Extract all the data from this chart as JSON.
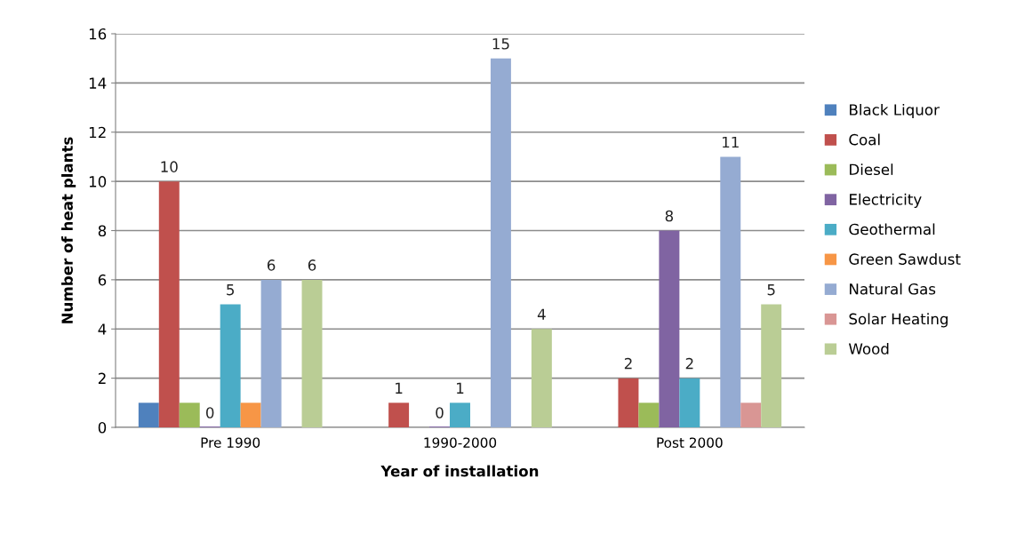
{
  "chart_data": {
    "type": "bar",
    "xlabel": "Year of installation",
    "ylabel": "Number of heat plants",
    "categories": [
      "Pre 1990",
      "1990-2000",
      "Post 2000"
    ],
    "series": [
      {
        "name": "Black Liquor",
        "color": "#4f81bd",
        "values": [
          1,
          null,
          null
        ]
      },
      {
        "name": "Coal",
        "color": "#c0504d",
        "values": [
          10,
          1,
          2
        ],
        "value_labels": [
          "10",
          "1",
          "2"
        ]
      },
      {
        "name": "Diesel",
        "color": "#9bbb59",
        "values": [
          1,
          null,
          1
        ]
      },
      {
        "name": "Electricity",
        "color": "#8064a2",
        "values": [
          0,
          0,
          8
        ],
        "value_labels": [
          "0",
          "0",
          "8"
        ]
      },
      {
        "name": "Geothermal",
        "color": "#4bacc6",
        "values": [
          5,
          1,
          2
        ],
        "value_labels": [
          "5",
          "1",
          "2"
        ]
      },
      {
        "name": "Green Sawdust",
        "color": "#f79646",
        "values": [
          1,
          null,
          null
        ]
      },
      {
        "name": "Natural Gas",
        "color": "#95abd2",
        "values": [
          6,
          15,
          11
        ],
        "value_labels": [
          "6",
          "15",
          "11"
        ]
      },
      {
        "name": "Solar Heating",
        "color": "#d99694",
        "values": [
          null,
          null,
          1
        ]
      },
      {
        "name": "Wood",
        "color": "#bacd95",
        "values": [
          6,
          4,
          5
        ],
        "value_labels": [
          "6",
          "4",
          "5"
        ]
      }
    ],
    "ylim": [
      0,
      16
    ],
    "yticks": [
      0,
      2,
      4,
      6,
      8,
      10,
      12,
      14,
      16
    ],
    "grid": "y",
    "legend": "right"
  }
}
